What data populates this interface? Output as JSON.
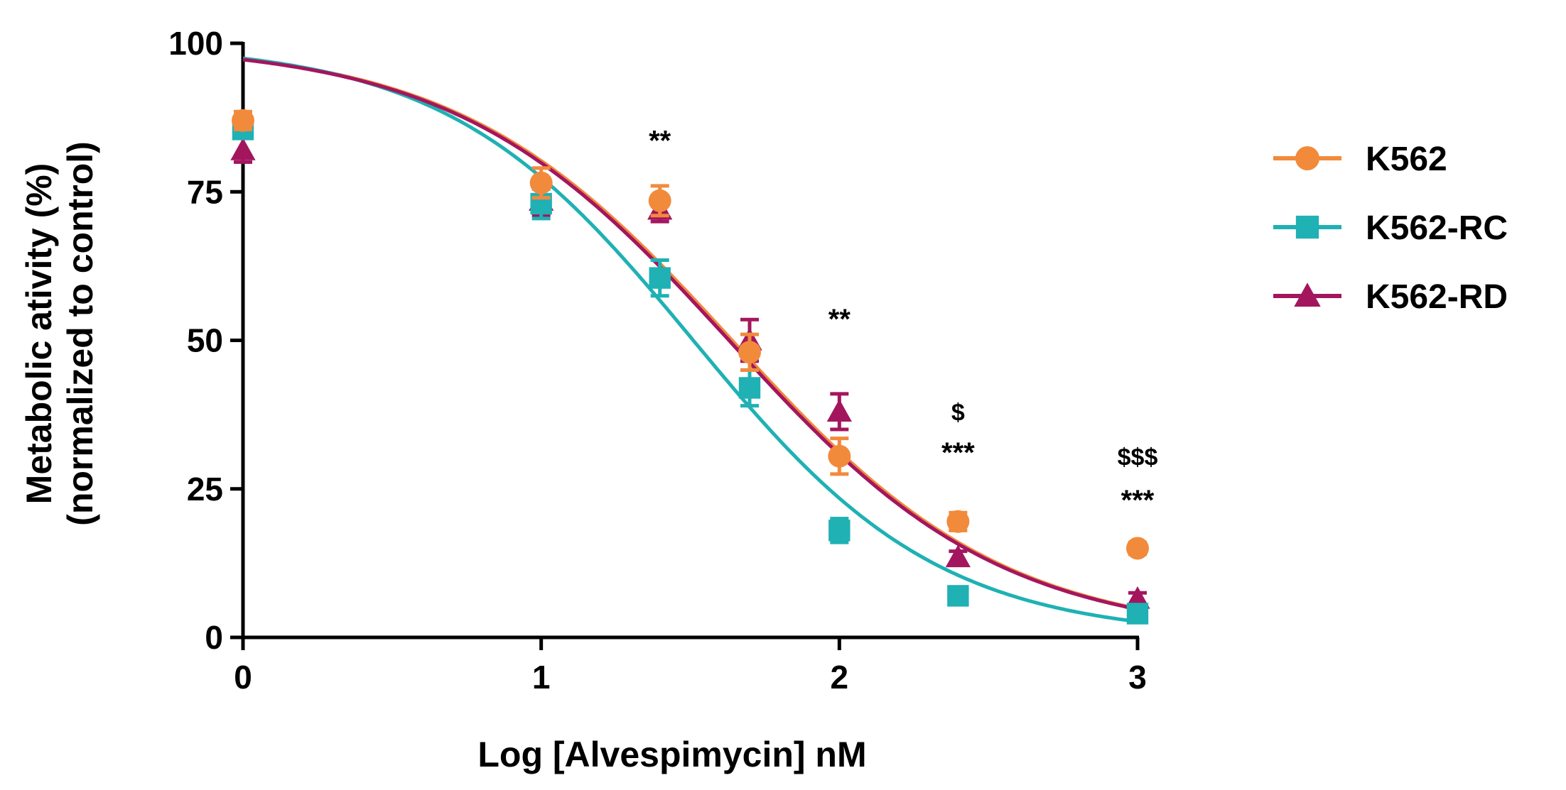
{
  "colors": {
    "K562": "#F28A3C",
    "K562-RC": "#1FB1B4",
    "K562-RD": "#A3165E",
    "axis": "#000000"
  },
  "chart_data": {
    "type": "scatter",
    "title": "",
    "xlabel": "Log [Alvespimycin] nM",
    "ylabel_line1": "Metabolic ativity (%)",
    "ylabel_line2": "(normalized to control)",
    "xlim": [
      0,
      3
    ],
    "ylim": [
      0,
      100
    ],
    "xticks": [
      "0",
      "1",
      "2",
      "3"
    ],
    "yticks": [
      "0",
      "25",
      "50",
      "75",
      "100"
    ],
    "grid": false,
    "legend_position": "right",
    "legend": [
      "K562",
      "K562-RC",
      "K562-RD"
    ],
    "series": [
      {
        "name": "K562",
        "marker": "circle",
        "x": [
          0,
          1,
          1.398,
          1.699,
          2,
          2.398,
          3
        ],
        "y": [
          87,
          76.5,
          73.5,
          48,
          30.5,
          19.5,
          15
        ],
        "err": [
          1.5,
          2.5,
          2.5,
          3,
          3,
          1.5,
          1
        ],
        "fit": {
          "top": 100,
          "bottom": 0,
          "logIC50": 1.64,
          "hill": 0.95
        }
      },
      {
        "name": "K562-RC",
        "marker": "square",
        "x": [
          0,
          1,
          1.398,
          1.699,
          2,
          2.398,
          3
        ],
        "y": [
          85.5,
          73,
          60.5,
          42,
          18,
          7,
          4
        ],
        "err": [
          1.5,
          2.5,
          3,
          3,
          2,
          1,
          1
        ],
        "fit": {
          "top": 100,
          "bottom": 0,
          "logIC50": 1.51,
          "hill": 1.05
        }
      },
      {
        "name": "K562-RD",
        "marker": "triangle",
        "x": [
          0,
          1,
          1.398,
          1.699,
          2,
          2.398,
          3
        ],
        "y": [
          82,
          73.5,
          72,
          50,
          38,
          13.5,
          6.5
        ],
        "err": [
          2,
          2.5,
          2,
          3.5,
          3,
          1,
          1
        ],
        "fit": {
          "top": 100,
          "bottom": 0,
          "logIC50": 1.63,
          "hill": 0.95
        }
      }
    ],
    "annotations": [
      {
        "text": "**",
        "x": 1.398,
        "y": 82,
        "size": "large"
      },
      {
        "text": "**",
        "x": 2,
        "y": 52,
        "size": "large"
      },
      {
        "text": "$",
        "x": 2.398,
        "y": 36.5,
        "size": "small"
      },
      {
        "text": "***",
        "x": 2.398,
        "y": 29.5,
        "size": "large"
      },
      {
        "text": "$$$",
        "x": 3,
        "y": 29,
        "size": "small"
      },
      {
        "text": "***",
        "x": 3,
        "y": 21.5,
        "size": "large"
      }
    ]
  }
}
